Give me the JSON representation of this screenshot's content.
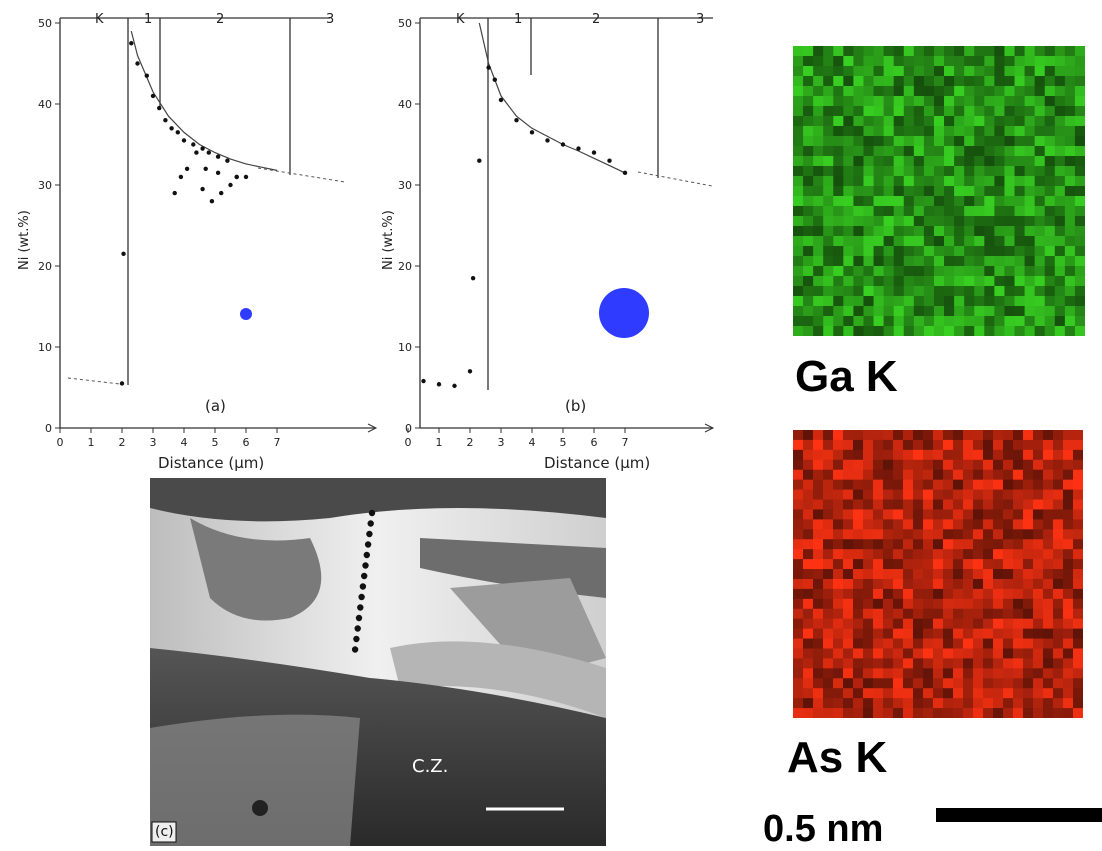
{
  "plot_a": {
    "panel_label": "(a)",
    "ylabel": "Ni (wt.%)",
    "xlabel": "Distance (µm)",
    "zones": [
      "K",
      "1",
      "2",
      "3"
    ],
    "yticks": [
      "0",
      "10",
      "20",
      "30",
      "40",
      "50"
    ],
    "xticks": [
      "0",
      "1",
      "2",
      "3",
      "4",
      "5",
      "6",
      "7"
    ]
  },
  "plot_b": {
    "panel_label": "(b)",
    "ylabel": "Ni (wt.%)",
    "xlabel": "Distance (µm)",
    "zones": [
      "K",
      "1",
      "2",
      "3"
    ],
    "yticks": [
      "0",
      "10",
      "20",
      "30",
      "40",
      "50"
    ],
    "xticks": [
      "0",
      "1",
      "2",
      "3",
      "4",
      "5",
      "6",
      "7"
    ]
  },
  "micrograph": {
    "panel_label": "(c)",
    "region_label": "C.Z."
  },
  "maps": {
    "ga_label": "Ga K",
    "as_label": "As K",
    "ga_color": "#2fae1c",
    "as_color": "#d42a10"
  },
  "scale": {
    "label": "0.5 nm"
  },
  "markers": {
    "color": "#2f3cff"
  },
  "chart_data": [
    {
      "type": "scatter",
      "title": "(a)",
      "xlabel": "Distance (µm)",
      "ylabel": "Ni (wt.%)",
      "xlim": [
        0,
        10
      ],
      "ylim": [
        0,
        50
      ],
      "series": [
        {
          "x": [
            2.0,
            2.05,
            2.3,
            2.5,
            2.8,
            3.0,
            3.2,
            3.4,
            3.6,
            3.8,
            4.0,
            4.3,
            4.6,
            4.8,
            5.1,
            5.4,
            5.7,
            6.0
          ],
          "y": [
            5.5,
            21.5,
            47.5,
            45,
            43.5,
            41,
            39.5,
            38,
            37,
            36.5,
            35.5,
            35,
            34.5,
            34,
            33.5,
            33,
            31,
            31
          ]
        },
        {
          "x": [
            3.7,
            3.9,
            4.1,
            4.4,
            4.6,
            4.7,
            4.9,
            5.1,
            5.2,
            5.5,
            5.7
          ],
          "y": [
            29,
            31,
            32,
            34,
            29.5,
            32,
            28,
            31.5,
            29,
            30,
            31
          ]
        }
      ],
      "curve_x": [
        2.3,
        2.5,
        3.0,
        3.5,
        4.0,
        4.5,
        5.0,
        5.5,
        6.0,
        6.5,
        7.0
      ],
      "curve_y": [
        49,
        46,
        41.5,
        38.5,
        36.5,
        35,
        34,
        33.2,
        32.6,
        32.2,
        31.8
      ]
    },
    {
      "type": "scatter",
      "title": "(b)",
      "xlabel": "Distance (µm)",
      "ylabel": "Ni (wt.%)",
      "xlim": [
        0,
        10
      ],
      "ylim": [
        0,
        50
      ],
      "series": [
        {
          "x": [
            0.5,
            1.0,
            1.5,
            2.0,
            2.1,
            2.3,
            2.6,
            2.8,
            3.0,
            3.5,
            4.0,
            4.5,
            5.0,
            5.5,
            6.0,
            6.5,
            7.0
          ],
          "y": [
            5.8,
            5.4,
            5.2,
            7,
            18.5,
            33,
            44.5,
            43,
            40.5,
            38,
            36.5,
            35.5,
            35,
            34.5,
            34,
            33,
            31.5
          ]
        }
      ],
      "curve_x": [
        2.3,
        2.6,
        3.0,
        3.5,
        4.0,
        4.5,
        5.0,
        5.5,
        6.0,
        6.5,
        7.0
      ],
      "curve_y": [
        50,
        45,
        41,
        38.5,
        37,
        36,
        35,
        34.2,
        33.3,
        32.4,
        31.5
      ]
    }
  ]
}
